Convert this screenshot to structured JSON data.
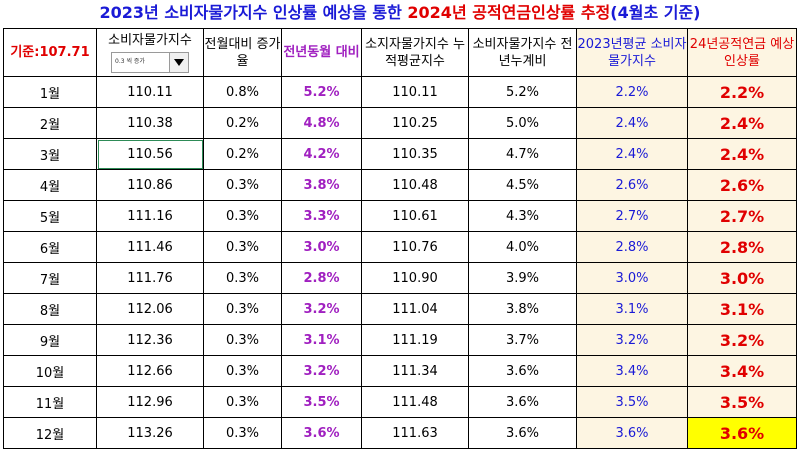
{
  "title": {
    "part1": "2023년 소비자물가지수 인상률 예상을 통한 ",
    "part2": "2024년 공적연금인상률 추정",
    "part3": "(4월초 기준)"
  },
  "header": {
    "base_label": "기준:107.71",
    "cpi_label": "소비자물가지수",
    "dropdown_value": "0.3 씩 증가",
    "mom": "전월대비 증가율",
    "yoy": "전년동월 대비",
    "cumavg": "소지자물가지수 누적평균지수",
    "cumratio": "소비자물가지수 전년누계비",
    "avg2023": "2023년평균 소비자물가지수",
    "pension": "24년공적연금 예상 인상률"
  },
  "rows": [
    {
      "month": "1월",
      "cpi": "110.11",
      "mom": "0.8%",
      "yoy": "5.2%",
      "cumavg": "110.11",
      "cumratio": "5.2%",
      "avg": "2.2%",
      "pension": "2.2%"
    },
    {
      "month": "2월",
      "cpi": "110.38",
      "mom": "0.2%",
      "yoy": "4.8%",
      "cumavg": "110.25",
      "cumratio": "5.0%",
      "avg": "2.4%",
      "pension": "2.4%"
    },
    {
      "month": "3월",
      "cpi": "110.56",
      "mom": "0.2%",
      "yoy": "4.2%",
      "cumavg": "110.35",
      "cumratio": "4.7%",
      "avg": "2.4%",
      "pension": "2.4%"
    },
    {
      "month": "4월",
      "cpi": "110.86",
      "mom": "0.3%",
      "yoy": "3.8%",
      "cumavg": "110.48",
      "cumratio": "4.5%",
      "avg": "2.6%",
      "pension": "2.6%"
    },
    {
      "month": "5월",
      "cpi": "111.16",
      "mom": "0.3%",
      "yoy": "3.3%",
      "cumavg": "110.61",
      "cumratio": "4.3%",
      "avg": "2.7%",
      "pension": "2.7%"
    },
    {
      "month": "6월",
      "cpi": "111.46",
      "mom": "0.3%",
      "yoy": "3.0%",
      "cumavg": "110.76",
      "cumratio": "4.0%",
      "avg": "2.8%",
      "pension": "2.8%"
    },
    {
      "month": "7월",
      "cpi": "111.76",
      "mom": "0.3%",
      "yoy": "2.8%",
      "cumavg": "110.90",
      "cumratio": "3.9%",
      "avg": "3.0%",
      "pension": "3.0%"
    },
    {
      "month": "8월",
      "cpi": "112.06",
      "mom": "0.3%",
      "yoy": "3.2%",
      "cumavg": "111.04",
      "cumratio": "3.8%",
      "avg": "3.1%",
      "pension": "3.1%"
    },
    {
      "month": "9월",
      "cpi": "112.36",
      "mom": "0.3%",
      "yoy": "3.1%",
      "cumavg": "111.19",
      "cumratio": "3.7%",
      "avg": "3.2%",
      "pension": "3.2%"
    },
    {
      "month": "10월",
      "cpi": "112.66",
      "mom": "0.3%",
      "yoy": "3.2%",
      "cumavg": "111.34",
      "cumratio": "3.6%",
      "avg": "3.4%",
      "pension": "3.4%"
    },
    {
      "month": "11월",
      "cpi": "112.96",
      "mom": "0.3%",
      "yoy": "3.5%",
      "cumavg": "111.48",
      "cumratio": "3.6%",
      "avg": "3.5%",
      "pension": "3.5%"
    },
    {
      "month": "12월",
      "cpi": "113.26",
      "mom": "0.3%",
      "yoy": "3.6%",
      "cumavg": "111.63",
      "cumratio": "3.6%",
      "avg": "3.6%",
      "pension": "3.6%"
    }
  ],
  "colors": {
    "title_blue": "#1a1ad6",
    "title_red": "#e00000",
    "yoy_purple": "#a020c0",
    "highlight_yellow": "#ffff00",
    "cream": "#fdf5e2"
  }
}
